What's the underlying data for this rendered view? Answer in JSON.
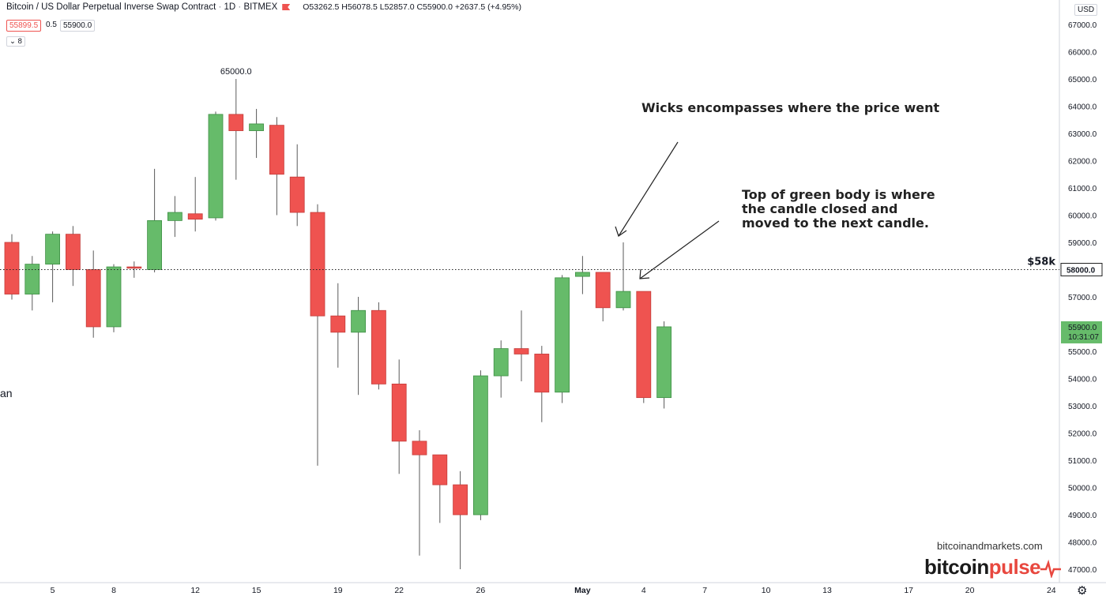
{
  "header": {
    "title": "Bitcoin / US Dollar Perpetual Inverse Swap Contract",
    "interval": "1D",
    "exchange": "BITMEX",
    "ohlc": "O53262.5 H56078.5 L52857.0 C55900.0 +2637.5 (+4.95%)",
    "sell_price": "55899.5",
    "spread": "0.5",
    "buy_price": "55900.0",
    "indicator_count": "8",
    "currency": "USD"
  },
  "side_label": "an",
  "annotations": {
    "high_label": "65000.0",
    "wicks_note": "Wicks encompasses where the price went",
    "body_note": "Top of green body is where the candle closed and moved to the next candle.",
    "level_label": "$58k"
  },
  "watermark": {
    "site": "bitcoinandmarkets.com",
    "brand_a": "bitcoin",
    "brand_b": "pulse"
  },
  "colors": {
    "up": "#66bb6a",
    "down": "#ef5350",
    "up_wick": "#5c5c5c",
    "down_wick": "#5c5c5c",
    "last_price_bg": "#66bb6a"
  },
  "chart_data": {
    "type": "candlestick",
    "price_axis": {
      "ticks": [
        47000,
        48000,
        49000,
        50000,
        51000,
        52000,
        53000,
        54000,
        55000,
        56000,
        57000,
        58000,
        59000,
        60000,
        61000,
        62000,
        63000,
        64000,
        65000,
        66000,
        67000
      ],
      "ylim": [
        46600,
        67300
      ]
    },
    "time_axis": {
      "ticks": [
        {
          "label": "5",
          "index": 2
        },
        {
          "label": "8",
          "index": 5
        },
        {
          "label": "12",
          "index": 9
        },
        {
          "label": "15",
          "index": 12
        },
        {
          "label": "19",
          "index": 16
        },
        {
          "label": "22",
          "index": 19
        },
        {
          "label": "26",
          "index": 23
        },
        {
          "label": "May",
          "index": 28
        },
        {
          "label": "4",
          "index": 31
        },
        {
          "label": "7",
          "index": 34
        },
        {
          "label": "10",
          "index": 37
        },
        {
          "label": "13",
          "index": 40
        },
        {
          "label": "17",
          "index": 44
        },
        {
          "label": "20",
          "index": 47
        },
        {
          "label": "24",
          "index": 51
        }
      ]
    },
    "horizontal_line": {
      "value": 58000,
      "label": "58000.0"
    },
    "last_price": {
      "value": 55900,
      "label": "55900.0",
      "countdown": "10:31:07"
    },
    "candles": [
      {
        "o": 59000,
        "h": 59300,
        "l": 56900,
        "c": 57100
      },
      {
        "o": 57100,
        "h": 58500,
        "l": 56500,
        "c": 58200
      },
      {
        "o": 58200,
        "h": 59400,
        "l": 56800,
        "c": 59300
      },
      {
        "o": 59300,
        "h": 59600,
        "l": 57400,
        "c": 58000
      },
      {
        "o": 58000,
        "h": 58700,
        "l": 55500,
        "c": 55900
      },
      {
        "o": 55900,
        "h": 58200,
        "l": 55700,
        "c": 58100
      },
      {
        "o": 58100,
        "h": 58300,
        "l": 57700,
        "c": 58050
      },
      {
        "o": 58000,
        "h": 61700,
        "l": 57900,
        "c": 59800
      },
      {
        "o": 59800,
        "h": 60700,
        "l": 59200,
        "c": 60100
      },
      {
        "o": 60050,
        "h": 61400,
        "l": 59400,
        "c": 59850
      },
      {
        "o": 59900,
        "h": 63800,
        "l": 59800,
        "c": 63700
      },
      {
        "o": 63700,
        "h": 65000,
        "l": 61300,
        "c": 63100
      },
      {
        "o": 63100,
        "h": 63900,
        "l": 62100,
        "c": 63350
      },
      {
        "o": 63300,
        "h": 63600,
        "l": 60000,
        "c": 61500
      },
      {
        "o": 61400,
        "h": 62600,
        "l": 59600,
        "c": 60100
      },
      {
        "o": 60100,
        "h": 60400,
        "l": 50800,
        "c": 56300
      },
      {
        "o": 56300,
        "h": 57500,
        "l": 54400,
        "c": 55700
      },
      {
        "o": 55700,
        "h": 57000,
        "l": 53400,
        "c": 56500
      },
      {
        "o": 56500,
        "h": 56800,
        "l": 53600,
        "c": 53800
      },
      {
        "o": 53800,
        "h": 54700,
        "l": 50500,
        "c": 51700
      },
      {
        "o": 51700,
        "h": 52100,
        "l": 47500,
        "c": 51200
      },
      {
        "o": 51200,
        "h": 51200,
        "l": 48700,
        "c": 50100
      },
      {
        "o": 50100,
        "h": 50600,
        "l": 47000,
        "c": 49000
      },
      {
        "o": 49000,
        "h": 54300,
        "l": 48800,
        "c": 54100
      },
      {
        "o": 54100,
        "h": 55400,
        "l": 53300,
        "c": 55100
      },
      {
        "o": 55100,
        "h": 56500,
        "l": 53900,
        "c": 54900
      },
      {
        "o": 54900,
        "h": 55200,
        "l": 52400,
        "c": 53500
      },
      {
        "o": 53500,
        "h": 57800,
        "l": 53100,
        "c": 57700
      },
      {
        "o": 57750,
        "h": 58500,
        "l": 57100,
        "c": 57900
      },
      {
        "o": 57900,
        "h": 57900,
        "l": 56100,
        "c": 56600
      },
      {
        "o": 56600,
        "h": 59000,
        "l": 56500,
        "c": 57200
      },
      {
        "o": 57200,
        "h": 57200,
        "l": 53100,
        "c": 53300
      },
      {
        "o": 53300,
        "h": 56100,
        "l": 52900,
        "c": 55900
      }
    ]
  }
}
